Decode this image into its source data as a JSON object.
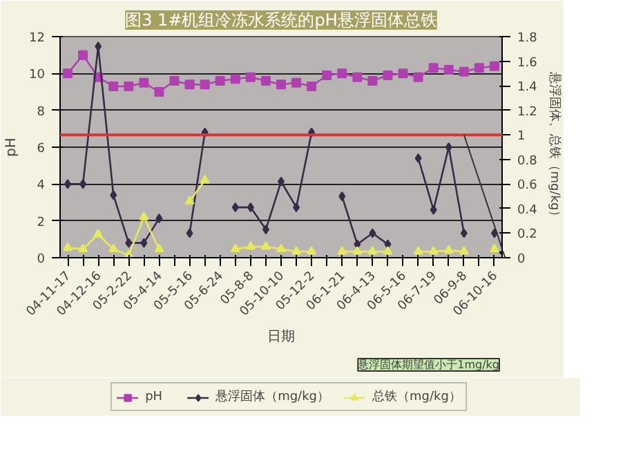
{
  "chart_data": {
    "type": "line",
    "title": "图3 1#机组冷冻水系统的pH悬浮固体总铁",
    "xlabel": "日期",
    "ylabel": "pH",
    "y2label": "悬浮固体、总铁（mg/kg）",
    "categories": [
      "04-11-17",
      null,
      "04-12-16",
      null,
      "05-2-22",
      null,
      "05-4-14",
      null,
      "05-5-16",
      null,
      "05-6-24",
      null,
      "05-8-8",
      null,
      "05-10-10",
      null,
      "05-12-2",
      null,
      "06-1-21",
      null,
      "06-4-13",
      null,
      "06-5-16",
      null,
      "06-7-19",
      null,
      "06-9-8",
      null,
      "06-10-16"
    ],
    "series": [
      {
        "name": "pH",
        "color": "#b040b0",
        "marker": "square",
        "values": [
          10.0,
          11.0,
          9.8,
          9.3,
          9.3,
          9.5,
          9.0,
          9.6,
          9.4,
          9.4,
          9.6,
          9.7,
          9.8,
          9.6,
          9.4,
          9.5,
          9.3,
          9.9,
          10.0,
          9.8,
          9.6,
          9.9,
          10.0,
          9.8,
          10.3,
          10.2,
          10.1,
          10.3,
          10.4
        ]
      },
      {
        "name": "悬浮固体（mg/kg）",
        "color": "#3a2a4a",
        "marker": "diamond",
        "axis": "y2",
        "values": [
          0.6,
          0.6,
          1.72,
          0.51,
          0.12,
          0.12,
          0.32,
          null,
          0.2,
          1.02,
          null,
          0.41,
          0.41,
          0.23,
          0.62,
          0.41,
          1.02,
          null,
          0.5,
          0.11,
          0.2,
          0.11,
          null,
          0.81,
          0.39,
          0.9,
          0.2,
          null,
          0.2
        ]
      },
      {
        "name": "总铁（mg/kg）",
        "color": "#e8e860",
        "marker": "triangle",
        "axis": "y2",
        "values": [
          0.08,
          0.07,
          0.19,
          0.07,
          0.02,
          0.33,
          0.07,
          null,
          0.46,
          0.63,
          null,
          0.07,
          0.09,
          0.09,
          0.07,
          0.05,
          0.05,
          null,
          0.05,
          0.05,
          0.05,
          0.05,
          null,
          0.05,
          0.05,
          0.06,
          0.05,
          null,
          0.07
        ]
      }
    ],
    "ylim": [
      0,
      12
    ],
    "yticks": [
      0,
      2,
      4,
      6,
      8,
      10,
      12
    ],
    "y2lim": [
      0,
      1.8
    ],
    "y2ticks": [
      0,
      0.2,
      0.4,
      0.6,
      0.8,
      1,
      1.2,
      1.4,
      1.6,
      1.8
    ],
    "ref_lines": [
      {
        "axis": "y2",
        "value": 1,
        "color": "#e03030"
      }
    ],
    "annotations": [
      "悬浮固体期望值小于1mg/kg"
    ],
    "grid": "y",
    "legend": "bottom",
    "line_style": "solid"
  }
}
